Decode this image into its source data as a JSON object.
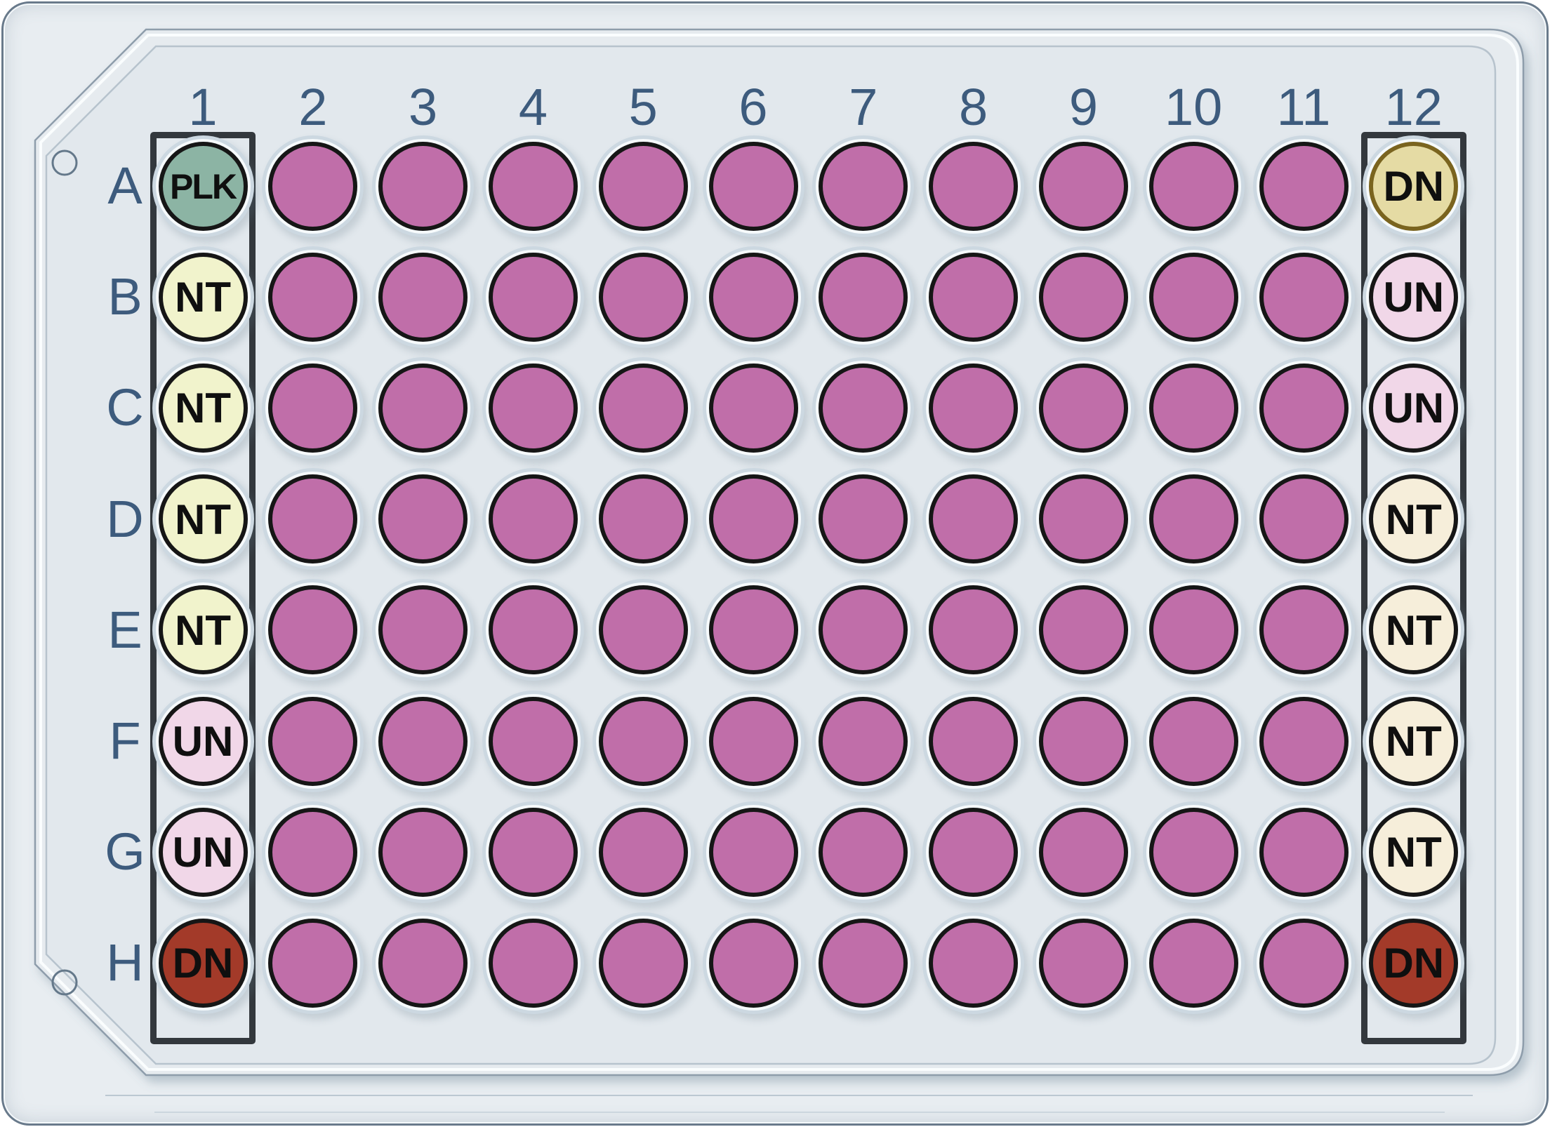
{
  "figure": {
    "kind": "96-well microplate plate map"
  },
  "plate": {
    "column_headers": [
      "1",
      "2",
      "3",
      "4",
      "5",
      "6",
      "7",
      "8",
      "9",
      "10",
      "11",
      "12"
    ],
    "row_headers": [
      "A",
      "B",
      "C",
      "D",
      "E",
      "F",
      "G",
      "H"
    ],
    "header_color": "#3d5b7d",
    "well_label_color": "#0f0f0f",
    "well_styles": {
      "sample": {
        "label": "",
        "fill": "#c06ea9",
        "ring": "#161616"
      },
      "plk": {
        "label": "PLK",
        "fill": "#8cb4a4",
        "ring": "#161616"
      },
      "nt_yellow": {
        "label": "NT",
        "fill": "#f1f3cc",
        "ring": "#161616"
      },
      "un_pink": {
        "label": "UN",
        "fill": "#f1d7e8",
        "ring": "#161616"
      },
      "dn_red": {
        "label": "DN",
        "fill": "#a33a29",
        "ring": "#161616"
      },
      "dn_tan": {
        "label": "DN",
        "fill": "#e5dba4",
        "ring": "#7a641f"
      },
      "nt_cream": {
        "label": "NT",
        "fill": "#f6eeda",
        "ring": "#161616"
      }
    },
    "default_well_style": "sample",
    "special_wells": {
      "A1": "plk",
      "B1": "nt_yellow",
      "C1": "nt_yellow",
      "D1": "nt_yellow",
      "E1": "nt_yellow",
      "F1": "un_pink",
      "G1": "un_pink",
      "H1": "dn_red",
      "A12": "dn_tan",
      "B12": "un_pink",
      "C12": "un_pink",
      "D12": "nt_cream",
      "E12": "nt_cream",
      "F12": "nt_cream",
      "G12": "nt_cream",
      "H12": "dn_red"
    },
    "framed_columns": [
      "1",
      "12"
    ],
    "frame_color": "#33383d",
    "plate_colors": {
      "base": "#e8edf1",
      "platform": "#e6ebef",
      "well_area": "#e2e8ed",
      "well_halo": "#ccd8e1"
    }
  }
}
